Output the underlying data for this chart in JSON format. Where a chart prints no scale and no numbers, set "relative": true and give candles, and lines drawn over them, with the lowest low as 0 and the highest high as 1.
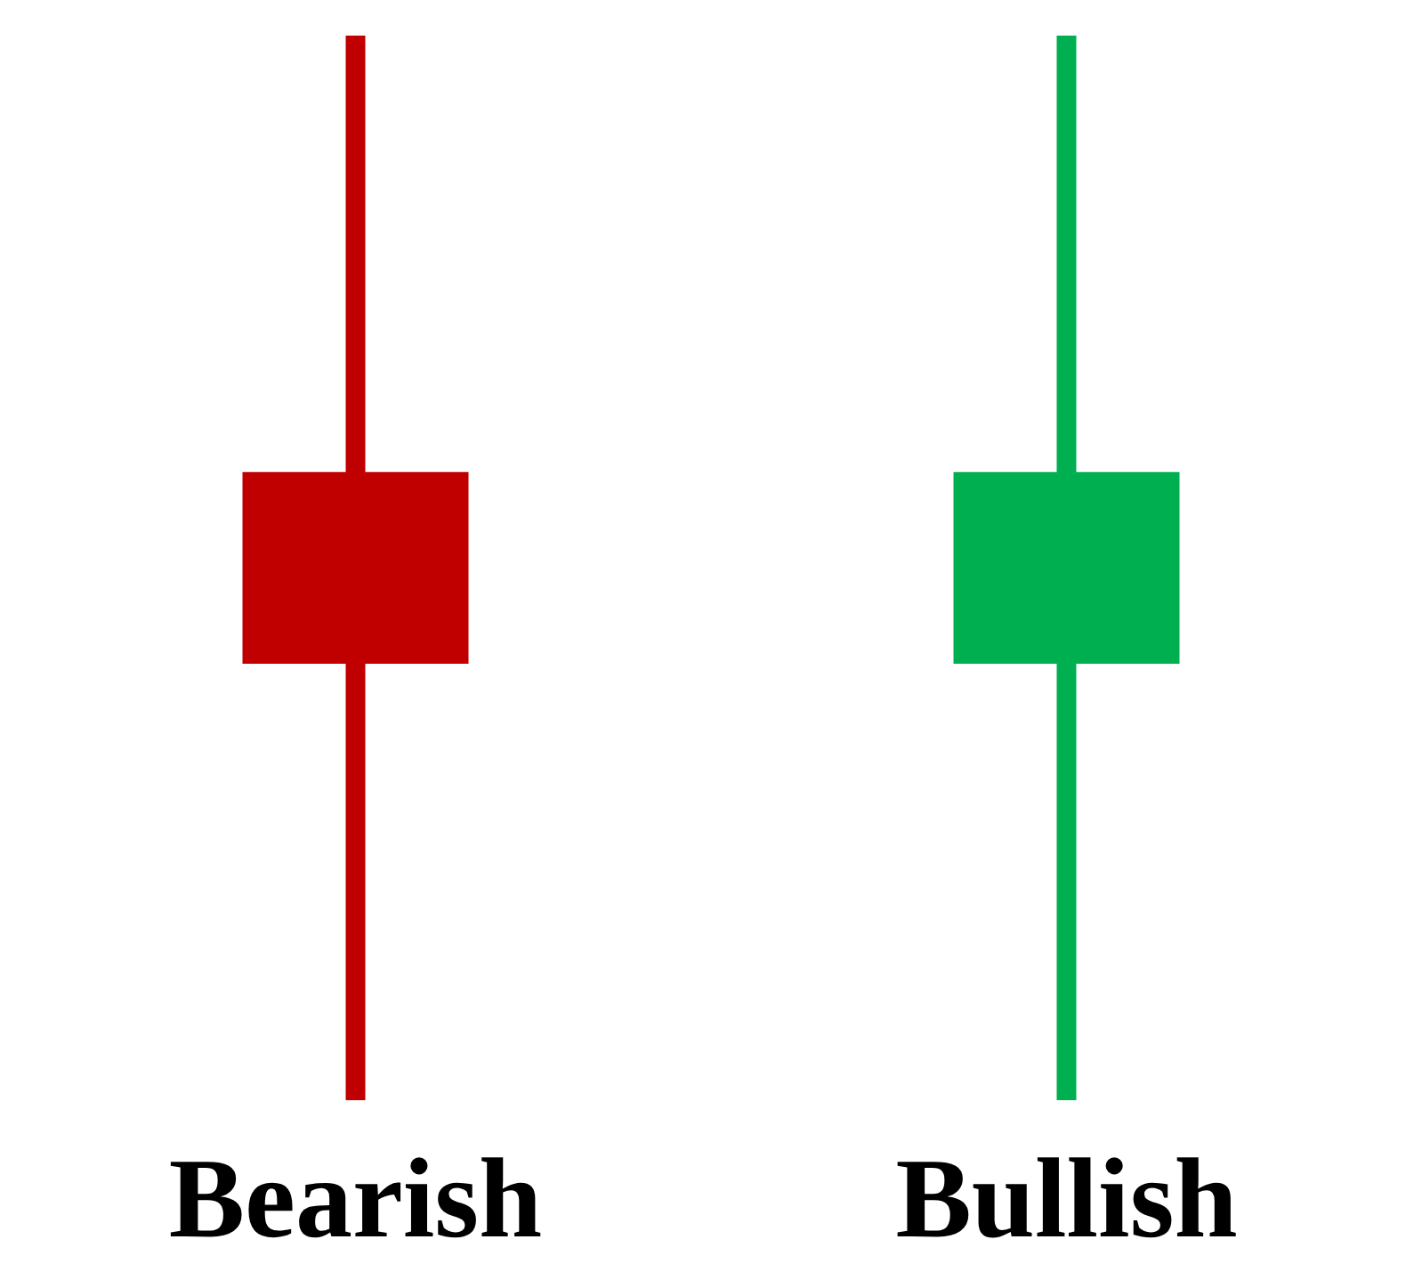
{
  "chart_data": {
    "type": "candlestick",
    "relative": true,
    "categories": [
      "Bearish",
      "Bullish"
    ],
    "ohlc": [
      [
        0.59,
        1,
        0,
        0.41
      ],
      [
        0.41,
        1,
        0,
        0.59
      ]
    ],
    "colors": [
      "#c00000",
      "#00b050"
    ]
  }
}
